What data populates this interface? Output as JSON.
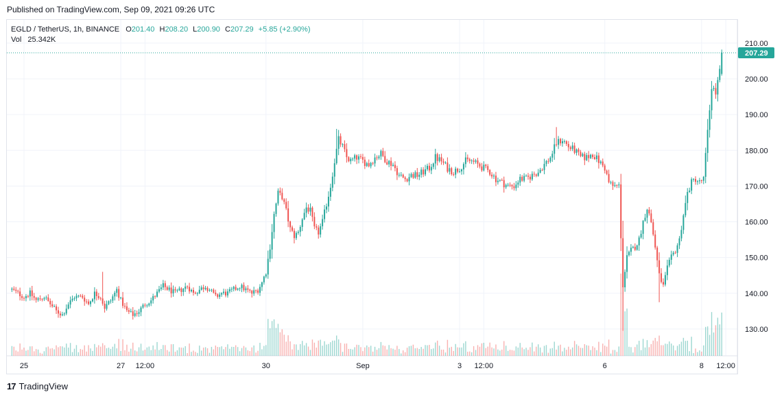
{
  "published": "Published on TradingView.com, Sep 09, 2021 09:26 UTC",
  "legend": {
    "symbol": "EGLD / TetherUS, 1h, BINANCE",
    "o_label": "O",
    "o_value": "201.40",
    "h_label": "H",
    "h_value": "208.20",
    "l_label": "L",
    "l_value": "200.90",
    "c_label": "C",
    "c_value": "207.29",
    "change": "+5.85 (+2.90%)",
    "vol_label": "Vol",
    "vol_value": "25.342K"
  },
  "footer": {
    "brand": "TradingView",
    "logo_glyph": "17"
  },
  "colors": {
    "up": "#26a69a",
    "down": "#ef5350",
    "grid": "#f0f3fa",
    "last_price": "#26a69a"
  },
  "chart_data": {
    "type": "candlestick",
    "symbol": "EGLD / TetherUS",
    "interval": "1h",
    "exchange": "BINANCE",
    "last_price_label": "207.29",
    "y_ticks": [
      "210.00",
      "200.00",
      "190.00",
      "180.00",
      "170.00",
      "160.00",
      "150.00",
      "140.00",
      "130.00"
    ],
    "ylim": [
      122.5,
      216.5
    ],
    "x_ticks": [
      "25",
      "27",
      "12:00",
      "30",
      "Sep",
      "3",
      "12:00",
      "6",
      "8",
      "12:00"
    ],
    "x_tick_hours": [
      0,
      48,
      60,
      120,
      168,
      216,
      228,
      288,
      336,
      348
    ],
    "x_origin": "Aug 25 00:00 (hour index 0)",
    "close_anchors": [
      [
        -6,
        141
      ],
      [
        0,
        139
      ],
      [
        3,
        140
      ],
      [
        6,
        138
      ],
      [
        10,
        139
      ],
      [
        13,
        137
      ],
      [
        16,
        135
      ],
      [
        19,
        134
      ],
      [
        22,
        137
      ],
      [
        25,
        139
      ],
      [
        29,
        139
      ],
      [
        32,
        137
      ],
      [
        35,
        140
      ],
      [
        38,
        139
      ],
      [
        40,
        136
      ],
      [
        43,
        138
      ],
      [
        46,
        141
      ],
      [
        48,
        138
      ],
      [
        51,
        135
      ],
      [
        54,
        134
      ],
      [
        57,
        135
      ],
      [
        60,
        137
      ],
      [
        63,
        138
      ],
      [
        66,
        140
      ],
      [
        69,
        142
      ],
      [
        72,
        141
      ],
      [
        75,
        140
      ],
      [
        78,
        141
      ],
      [
        81,
        142
      ],
      [
        84,
        140
      ],
      [
        87,
        141
      ],
      [
        90,
        142
      ],
      [
        92,
        141
      ],
      [
        95,
        139
      ],
      [
        98,
        140
      ],
      [
        101,
        140
      ],
      [
        104,
        141
      ],
      [
        107,
        142
      ],
      [
        110,
        141
      ],
      [
        113,
        140
      ],
      [
        116,
        141
      ],
      [
        118,
        143
      ],
      [
        120,
        146
      ],
      [
        122,
        153
      ],
      [
        124,
        162
      ],
      [
        126,
        168
      ],
      [
        128,
        167
      ],
      [
        130,
        163
      ],
      [
        132,
        158
      ],
      [
        134,
        156
      ],
      [
        136,
        157
      ],
      [
        138,
        161
      ],
      [
        140,
        164
      ],
      [
        142,
        163
      ],
      [
        144,
        158
      ],
      [
        146,
        157
      ],
      [
        148,
        160
      ],
      [
        150,
        165
      ],
      [
        152,
        170
      ],
      [
        154,
        177
      ],
      [
        156,
        183
      ],
      [
        158,
        181
      ],
      [
        160,
        178
      ],
      [
        162,
        177
      ],
      [
        165,
        178
      ],
      [
        168,
        177
      ],
      [
        171,
        176
      ],
      [
        174,
        178
      ],
      [
        177,
        179
      ],
      [
        180,
        177
      ],
      [
        183,
        176
      ],
      [
        186,
        173
      ],
      [
        189,
        172
      ],
      [
        192,
        173
      ],
      [
        195,
        173
      ],
      [
        198,
        174
      ],
      [
        201,
        175
      ],
      [
        204,
        178
      ],
      [
        207,
        177
      ],
      [
        210,
        175
      ],
      [
        213,
        174
      ],
      [
        216,
        175
      ],
      [
        219,
        177
      ],
      [
        222,
        177
      ],
      [
        225,
        176
      ],
      [
        228,
        175
      ],
      [
        231,
        174
      ],
      [
        234,
        172
      ],
      [
        237,
        171
      ],
      [
        240,
        170
      ],
      [
        243,
        170
      ],
      [
        246,
        172
      ],
      [
        249,
        172
      ],
      [
        252,
        173
      ],
      [
        255,
        174
      ],
      [
        258,
        176
      ],
      [
        261,
        178
      ],
      [
        264,
        182
      ],
      [
        267,
        183
      ],
      [
        270,
        181
      ],
      [
        273,
        180
      ],
      [
        276,
        178
      ],
      [
        279,
        178
      ],
      [
        282,
        179
      ],
      [
        285,
        177
      ],
      [
        288,
        175
      ],
      [
        290,
        171
      ],
      [
        292,
        170
      ],
      [
        295,
        170
      ],
      [
        297,
        142
      ],
      [
        299,
        150
      ],
      [
        301,
        152
      ],
      [
        303,
        153
      ],
      [
        305,
        155
      ],
      [
        307,
        160
      ],
      [
        309,
        164
      ],
      [
        311,
        160
      ],
      [
        313,
        153
      ],
      [
        315,
        145
      ],
      [
        317,
        142
      ],
      [
        319,
        147
      ],
      [
        321,
        150
      ],
      [
        323,
        152
      ],
      [
        325,
        155
      ],
      [
        327,
        162
      ],
      [
        329,
        168
      ],
      [
        331,
        171
      ],
      [
        333,
        172
      ],
      [
        335,
        171
      ],
      [
        337,
        172
      ],
      [
        339,
        185
      ],
      [
        341,
        198
      ],
      [
        343,
        196
      ],
      [
        345,
        202
      ],
      [
        346,
        207.29
      ]
    ]
  }
}
